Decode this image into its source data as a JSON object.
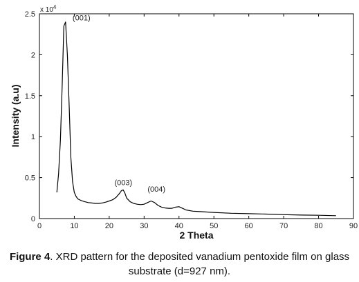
{
  "chart_data": {
    "type": "line",
    "xlabel": "2 Theta",
    "ylabel": "Intensity (a.u)",
    "xlim": [
      0,
      90
    ],
    "ylim": [
      0,
      25000
    ],
    "x_ticks": [
      0,
      10,
      20,
      30,
      40,
      50,
      60,
      70,
      80,
      90
    ],
    "y_ticks": [
      0,
      0.5,
      1,
      1.5,
      2,
      2.5
    ],
    "y_multiplier": "x 10",
    "y_multiplier_exp": "4",
    "grid": false,
    "series": [
      {
        "color": "#000000",
        "x": [
          5,
          5.5,
          6,
          6.5,
          7,
          7.5,
          8,
          8.5,
          9,
          9.5,
          10,
          10.5,
          11,
          12,
          13,
          14,
          15,
          16,
          17,
          18,
          19,
          20,
          21,
          22,
          23,
          23.5,
          24,
          24.5,
          25,
          26,
          27,
          28,
          29,
          30,
          31,
          32,
          33,
          34,
          35,
          36,
          37,
          38,
          39,
          40,
          41,
          42,
          44,
          46,
          48,
          50,
          55,
          60,
          65,
          70,
          75,
          80,
          85
        ],
        "y": [
          3200,
          5500,
          9500,
          16000,
          23500,
          24000,
          20000,
          14000,
          7500,
          4500,
          3200,
          2700,
          2400,
          2200,
          2050,
          1950,
          1900,
          1850,
          1850,
          1900,
          2000,
          2150,
          2300,
          2600,
          3100,
          3400,
          3500,
          3100,
          2500,
          2050,
          1850,
          1750,
          1700,
          1750,
          1950,
          2150,
          1950,
          1600,
          1400,
          1300,
          1250,
          1250,
          1400,
          1450,
          1250,
          1050,
          900,
          850,
          800,
          750,
          650,
          600,
          550,
          480,
          430,
          400,
          350
        ]
      }
    ],
    "annotations": [
      {
        "text": "(001)",
        "x": 9.5,
        "y": 24200
      },
      {
        "text": "(003)",
        "x": 21.5,
        "y": 4100
      },
      {
        "text": "(004)",
        "x": 31,
        "y": 3300
      }
    ]
  },
  "caption": {
    "label": "Figure 4",
    "text": ". XRD pattern for the deposited vanadium pentoxide film on glass substrate (d=927 nm)."
  }
}
